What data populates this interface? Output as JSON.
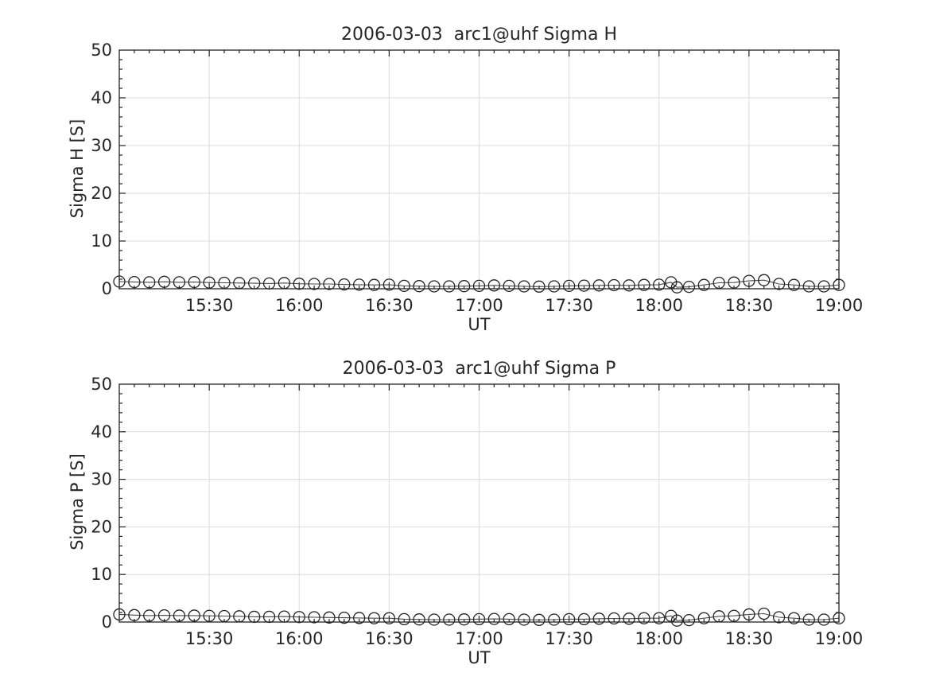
{
  "figure": {
    "background": "#ffffff",
    "text_color": "#262626",
    "axis_color": "#222222",
    "grid_color": "#dcdcdc",
    "line_color": "#4a4a4a",
    "marker_color": "#222222"
  },
  "chart_data": [
    {
      "type": "line",
      "marker": "open-circle",
      "title": "2006-03-03  arc1@uhf Sigma H",
      "xlabel": "UT",
      "ylabel": "Sigma H [S]",
      "xlim": [
        "15:00",
        "19:00"
      ],
      "ylim": [
        0,
        50
      ],
      "xticks": [
        "15:30",
        "16:00",
        "16:30",
        "17:00",
        "17:30",
        "18:00",
        "18:30",
        "19:00"
      ],
      "yticks": [
        0,
        10,
        20,
        30,
        40,
        50
      ],
      "x_minor_step_min": 5,
      "y_minor_step": 2,
      "grid": true,
      "tick_direction": "in",
      "legend": null,
      "points": [
        [
          "15:00",
          1.5
        ],
        [
          "15:05",
          1.4
        ],
        [
          "15:10",
          1.35
        ],
        [
          "15:15",
          1.45
        ],
        [
          "15:20",
          1.35
        ],
        [
          "15:25",
          1.4
        ],
        [
          "15:30",
          1.3
        ],
        [
          "15:35",
          1.25
        ],
        [
          "15:40",
          1.2
        ],
        [
          "15:45",
          1.15
        ],
        [
          "15:50",
          1.1
        ],
        [
          "15:55",
          1.2
        ],
        [
          "16:00",
          1.05
        ],
        [
          "16:05",
          1.0
        ],
        [
          "16:10",
          1.0
        ],
        [
          "16:15",
          0.9
        ],
        [
          "16:20",
          0.85
        ],
        [
          "16:25",
          0.8
        ],
        [
          "16:30",
          0.85
        ],
        [
          "16:35",
          0.6
        ],
        [
          "16:40",
          0.55
        ],
        [
          "16:45",
          0.5
        ],
        [
          "16:50",
          0.5
        ],
        [
          "16:55",
          0.55
        ],
        [
          "17:00",
          0.6
        ],
        [
          "17:05",
          0.7
        ],
        [
          "17:10",
          0.6
        ],
        [
          "17:15",
          0.5
        ],
        [
          "17:20",
          0.45
        ],
        [
          "17:25",
          0.5
        ],
        [
          "17:30",
          0.6
        ],
        [
          "17:35",
          0.65
        ],
        [
          "17:40",
          0.7
        ],
        [
          "17:45",
          0.75
        ],
        [
          "17:50",
          0.7
        ],
        [
          "17:55",
          0.8
        ],
        [
          "18:00",
          0.85
        ],
        [
          "18:04",
          1.35
        ],
        [
          "18:06",
          0.3
        ],
        [
          "18:10",
          0.4
        ],
        [
          "18:15",
          0.8
        ],
        [
          "18:20",
          1.25
        ],
        [
          "18:25",
          1.3
        ],
        [
          "18:30",
          1.65
        ],
        [
          "18:35",
          1.8
        ],
        [
          "18:40",
          1.0
        ],
        [
          "18:45",
          0.8
        ],
        [
          "18:50",
          0.5
        ],
        [
          "18:55",
          0.5
        ],
        [
          "19:00",
          0.8
        ]
      ]
    },
    {
      "type": "line",
      "marker": "open-circle",
      "title": "2006-03-03  arc1@uhf Sigma P",
      "xlabel": "UT",
      "ylabel": "Sigma P [S]",
      "xlim": [
        "15:00",
        "19:00"
      ],
      "ylim": [
        0,
        50
      ],
      "xticks": [
        "15:30",
        "16:00",
        "16:30",
        "17:00",
        "17:30",
        "18:00",
        "18:30",
        "19:00"
      ],
      "yticks": [
        0,
        10,
        20,
        30,
        40,
        50
      ],
      "x_minor_step_min": 5,
      "y_minor_step": 2,
      "grid": true,
      "tick_direction": "in",
      "legend": null,
      "points": [
        [
          "15:00",
          1.6
        ],
        [
          "15:05",
          1.45
        ],
        [
          "15:10",
          1.35
        ],
        [
          "15:15",
          1.4
        ],
        [
          "15:20",
          1.35
        ],
        [
          "15:25",
          1.35
        ],
        [
          "15:30",
          1.3
        ],
        [
          "15:35",
          1.25
        ],
        [
          "15:40",
          1.2
        ],
        [
          "15:45",
          1.1
        ],
        [
          "15:50",
          1.1
        ],
        [
          "15:55",
          1.15
        ],
        [
          "16:00",
          1.05
        ],
        [
          "16:05",
          1.0
        ],
        [
          "16:10",
          0.95
        ],
        [
          "16:15",
          0.9
        ],
        [
          "16:20",
          0.85
        ],
        [
          "16:25",
          0.8
        ],
        [
          "16:30",
          0.8
        ],
        [
          "16:35",
          0.6
        ],
        [
          "16:40",
          0.55
        ],
        [
          "16:45",
          0.5
        ],
        [
          "16:50",
          0.5
        ],
        [
          "16:55",
          0.55
        ],
        [
          "17:00",
          0.6
        ],
        [
          "17:05",
          0.65
        ],
        [
          "17:10",
          0.6
        ],
        [
          "17:15",
          0.5
        ],
        [
          "17:20",
          0.45
        ],
        [
          "17:25",
          0.5
        ],
        [
          "17:30",
          0.6
        ],
        [
          "17:35",
          0.6
        ],
        [
          "17:40",
          0.7
        ],
        [
          "17:45",
          0.75
        ],
        [
          "17:50",
          0.7
        ],
        [
          "17:55",
          0.8
        ],
        [
          "18:00",
          0.8
        ],
        [
          "18:04",
          1.3
        ],
        [
          "18:06",
          0.3
        ],
        [
          "18:10",
          0.4
        ],
        [
          "18:15",
          0.8
        ],
        [
          "18:20",
          1.2
        ],
        [
          "18:25",
          1.3
        ],
        [
          "18:30",
          1.6
        ],
        [
          "18:35",
          1.75
        ],
        [
          "18:40",
          1.0
        ],
        [
          "18:45",
          0.8
        ],
        [
          "18:50",
          0.5
        ],
        [
          "18:55",
          0.5
        ],
        [
          "19:00",
          0.8
        ]
      ]
    }
  ]
}
